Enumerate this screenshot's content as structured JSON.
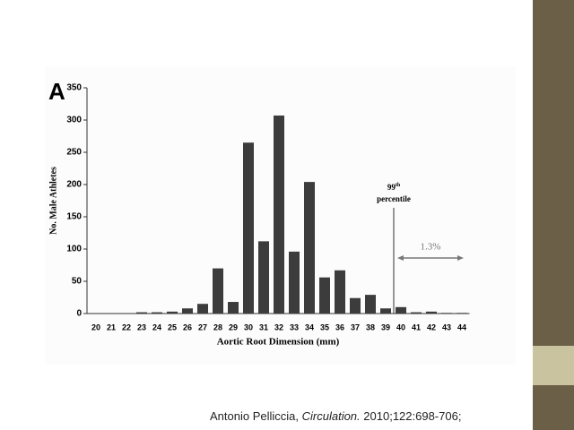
{
  "chart_data": {
    "type": "bar",
    "panel_label": "A",
    "xlabel": "Aortic Root Dimension (mm)",
    "ylabel": "No. Male Athletes",
    "categories": [
      20,
      21,
      22,
      23,
      24,
      25,
      26,
      27,
      28,
      29,
      30,
      31,
      32,
      33,
      34,
      35,
      36,
      37,
      38,
      39,
      40,
      41,
      42,
      43,
      44
    ],
    "values": [
      0,
      0,
      0,
      2,
      2,
      3,
      8,
      15,
      70,
      18,
      265,
      112,
      307,
      96,
      204,
      56,
      67,
      24,
      29,
      8,
      10,
      2,
      3,
      1,
      1
    ],
    "color": "#3c3c3c",
    "ylim": [
      0,
      350
    ],
    "yticks": [
      0,
      50,
      100,
      150,
      200,
      250,
      300,
      350
    ],
    "annotations": {
      "marker_number": "99",
      "marker_suffix": "th",
      "marker_text": "percentile",
      "share": "1.3%"
    }
  },
  "citation": {
    "author": "Antonio Pelliccia,",
    "journal": "Circulation.",
    "ref": "2010;122:698-706;"
  }
}
